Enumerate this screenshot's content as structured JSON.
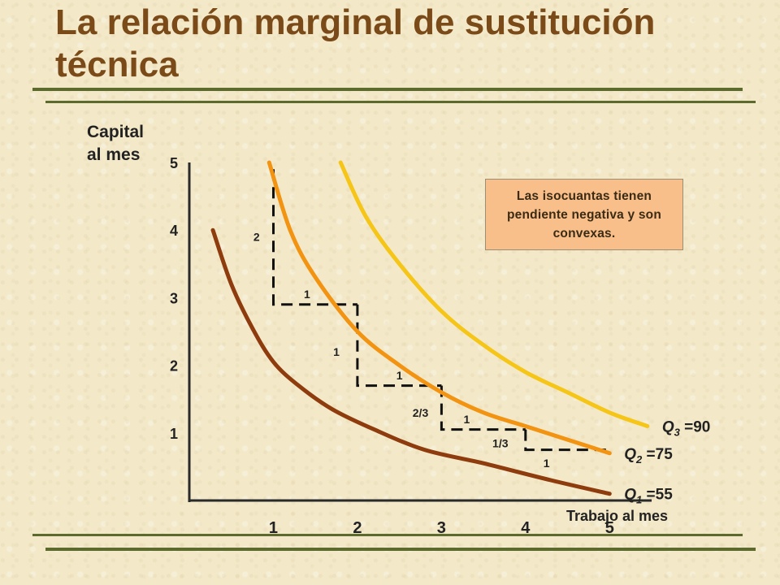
{
  "slide": {
    "title": "La relación marginal de sustitución técnica",
    "note": "Las isocuantas tienen pendiente negativa y son convexas."
  },
  "chart_data": {
    "type": "line",
    "ylabel": [
      "Capital",
      "al mes"
    ],
    "xlabel": "Trabajo al mes",
    "xlim": [
      0,
      5.5
    ],
    "ylim": [
      0,
      5
    ],
    "x_ticks": [
      1,
      2,
      3,
      4,
      5
    ],
    "y_ticks": [
      1,
      2,
      3,
      4,
      5
    ],
    "grid": false,
    "series": [
      {
        "name": "Q1",
        "label_main": "Q",
        "label_sub": "1",
        "label_value": " =55",
        "color": "#8e3c0e",
        "points": [
          [
            0.28,
            4.0
          ],
          [
            0.5,
            3.2
          ],
          [
            0.75,
            2.55
          ],
          [
            1.0,
            2.05
          ],
          [
            1.3,
            1.7
          ],
          [
            1.7,
            1.35
          ],
          [
            2.2,
            1.05
          ],
          [
            2.8,
            0.75
          ],
          [
            3.5,
            0.55
          ],
          [
            4.3,
            0.3
          ],
          [
            5.0,
            0.1
          ]
        ]
      },
      {
        "name": "Q2",
        "label_main": "Q",
        "label_sub": "2",
        "label_value": " =75",
        "color": "#f29312",
        "points": [
          [
            0.95,
            5.0
          ],
          [
            1.2,
            4.0
          ],
          [
            1.5,
            3.3
          ],
          [
            2.0,
            2.5
          ],
          [
            2.5,
            2.0
          ],
          [
            3.0,
            1.6
          ],
          [
            3.5,
            1.3
          ],
          [
            4.0,
            1.1
          ],
          [
            4.5,
            0.9
          ],
          [
            5.0,
            0.7
          ]
        ]
      },
      {
        "name": "Q3",
        "label_main": "Q",
        "label_sub": "3",
        "label_value": " =90",
        "color": "#f5c518",
        "points": [
          [
            1.8,
            5.0
          ],
          [
            2.1,
            4.2
          ],
          [
            2.5,
            3.5
          ],
          [
            3.0,
            2.8
          ],
          [
            3.5,
            2.3
          ],
          [
            4.0,
            1.9
          ],
          [
            4.5,
            1.6
          ],
          [
            5.0,
            1.3
          ],
          [
            5.45,
            1.1
          ]
        ]
      }
    ],
    "steps": [
      {
        "path": [
          [
            1.0,
            4.9
          ],
          [
            1.0,
            2.9
          ],
          [
            2.0,
            2.9
          ]
        ],
        "labels": [
          {
            "text": "2",
            "x": 0.8,
            "y": 3.9
          },
          {
            "text": "1",
            "x": 1.4,
            "y": 3.05
          }
        ]
      },
      {
        "path": [
          [
            2.0,
            2.9
          ],
          [
            2.0,
            1.7
          ],
          [
            3.0,
            1.7
          ]
        ],
        "labels": [
          {
            "text": "1",
            "x": 1.75,
            "y": 2.2
          },
          {
            "text": "1",
            "x": 2.5,
            "y": 1.85
          }
        ]
      },
      {
        "path": [
          [
            3.0,
            1.7
          ],
          [
            3.0,
            1.05
          ],
          [
            4.0,
            1.05
          ]
        ],
        "labels": [
          {
            "text": "2/3",
            "x": 2.75,
            "y": 1.3
          },
          {
            "text": "1",
            "x": 3.3,
            "y": 1.2
          }
        ]
      },
      {
        "path": [
          [
            4.0,
            1.05
          ],
          [
            4.0,
            0.75
          ],
          [
            5.0,
            0.75
          ]
        ],
        "labels": [
          {
            "text": "1/3",
            "x": 3.7,
            "y": 0.85
          },
          {
            "text": "1",
            "x": 4.25,
            "y": 0.55
          }
        ]
      }
    ]
  }
}
